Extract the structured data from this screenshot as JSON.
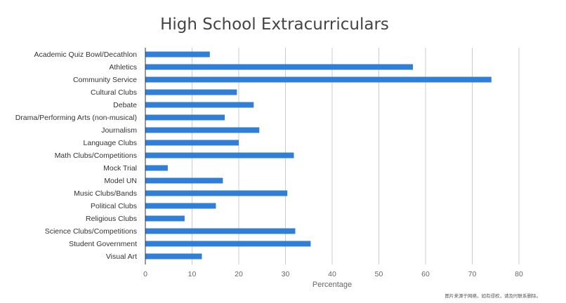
{
  "chart_data": {
    "type": "bar",
    "orientation": "horizontal",
    "title": "High School Extracurriculars",
    "xlabel": "Percentage",
    "ylabel": "",
    "xlim": [
      0,
      80
    ],
    "xticks": [
      0,
      10,
      20,
      30,
      40,
      50,
      60,
      70,
      80
    ],
    "grid": true,
    "legend": "none",
    "bar_color": "#2f7ed8",
    "categories": [
      "Academic Quiz Bowl/Decathlon",
      "Athletics",
      "Community Service",
      "Cultural Clubs",
      "Debate",
      "Drama/Performing Arts (non-musical)",
      "Journalism",
      "Language Clubs",
      "Math Clubs/Competitions",
      "Mock Trial",
      "Model UN",
      "Music Clubs/Bands",
      "Political Clubs",
      "Religious Clubs",
      "Science Clubs/Competitions",
      "Student Government",
      "Visual Art"
    ],
    "values": [
      13.8,
      57.3,
      74.1,
      19.6,
      23.2,
      17.0,
      24.4,
      20.0,
      31.8,
      4.8,
      16.6,
      30.4,
      15.1,
      8.4,
      32.1,
      35.4,
      12.1
    ]
  },
  "watermark": "图片来源于网络，如有侵权，请及时联系删除。"
}
